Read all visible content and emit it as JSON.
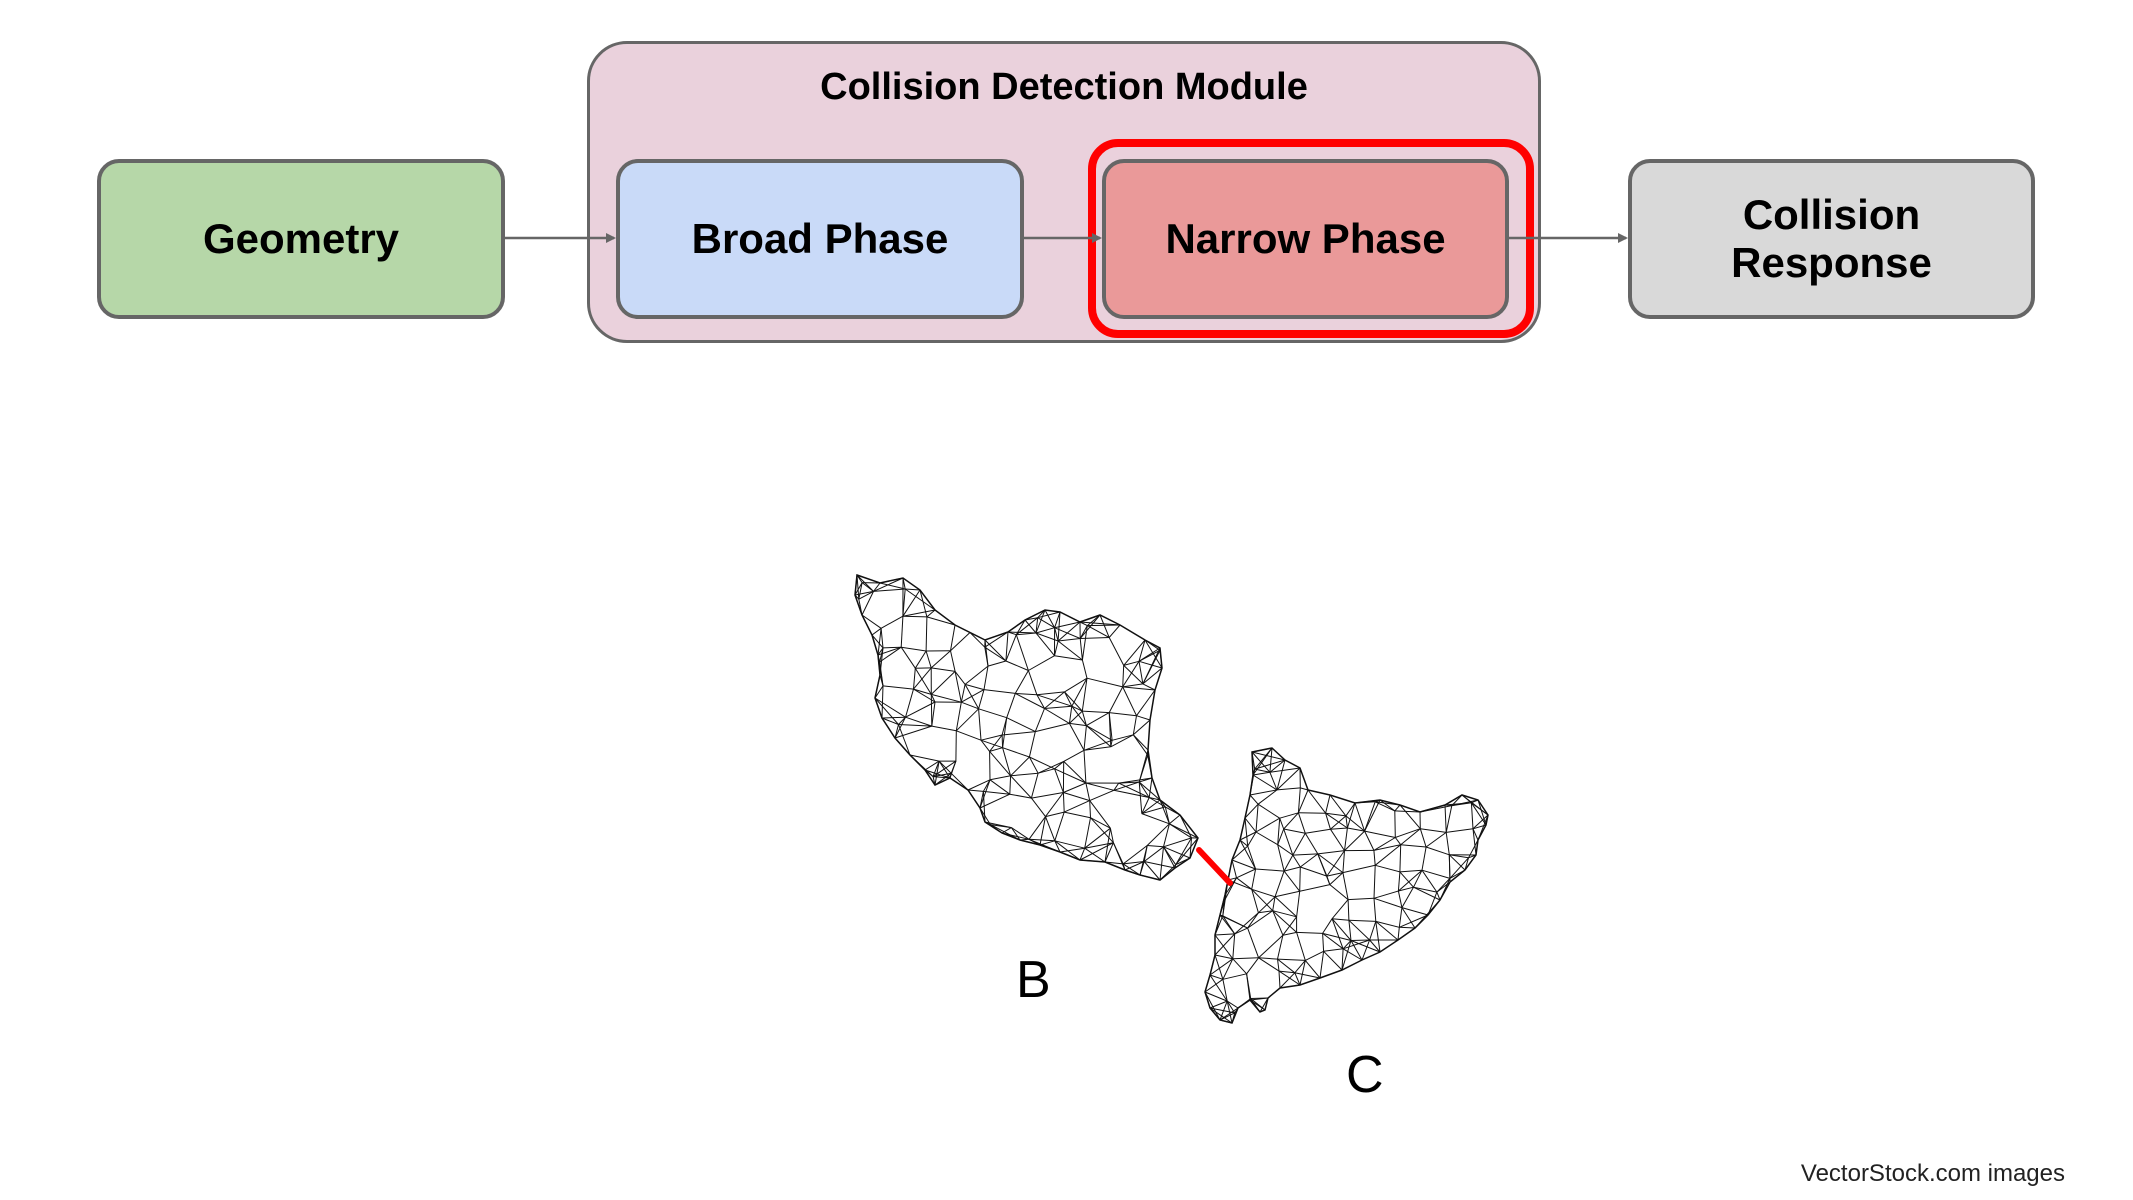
{
  "diagram": {
    "module_title": "Collision Detection Module",
    "nodes": {
      "geometry": "Geometry",
      "broad_phase": "Broad Phase",
      "narrow_phase": "Narrow Phase",
      "collision_response_line1": "Collision",
      "collision_response_line2": "Response"
    },
    "highlighted_node": "Narrow Phase",
    "colors": {
      "geometry": "#b6d7a8",
      "broad_phase": "#c9daf8",
      "narrow_phase": "#ea9999",
      "collision_response": "#d9d9d9",
      "module": "#ead1dc",
      "highlight": "#ff0000"
    }
  },
  "illustration": {
    "label_b": "B",
    "label_c": "C",
    "contact_line_color": "#ff0000"
  },
  "credit": "VectorStock.com images"
}
